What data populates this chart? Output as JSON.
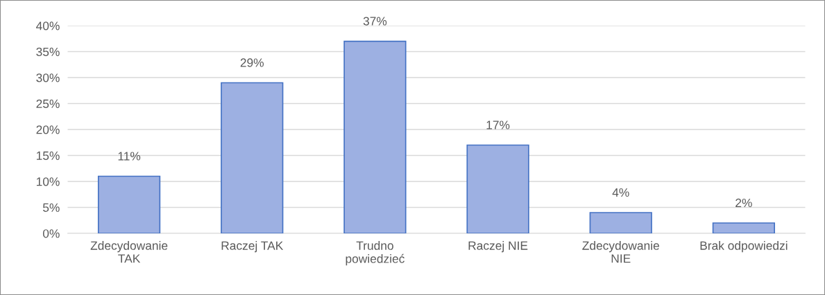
{
  "chart_data": {
    "type": "bar",
    "categories": [
      "Zdecydowanie\nTAK",
      "Raczej TAK",
      "Trudno\npowiedzieć",
      "Raczej NIE",
      "Zdecydowanie\nNIE",
      "Brak odpowiedzi"
    ],
    "values": [
      11,
      29,
      37,
      17,
      4,
      2
    ],
    "value_labels": [
      "11%",
      "29%",
      "37%",
      "17%",
      "4%",
      "2%"
    ],
    "color": "#9db0e2",
    "ylim": [
      0,
      40
    ],
    "yticks": [
      {
        "value": 0,
        "label": "0%"
      },
      {
        "value": 5,
        "label": "5%"
      },
      {
        "value": 10,
        "label": "10%"
      },
      {
        "value": 15,
        "label": "15%"
      },
      {
        "value": 20,
        "label": "20%"
      },
      {
        "value": 25,
        "label": "25%"
      },
      {
        "value": 30,
        "label": "30%"
      },
      {
        "value": 35,
        "label": "35%"
      },
      {
        "value": 40,
        "label": "40%"
      }
    ],
    "grid": "y",
    "legend": false
  }
}
